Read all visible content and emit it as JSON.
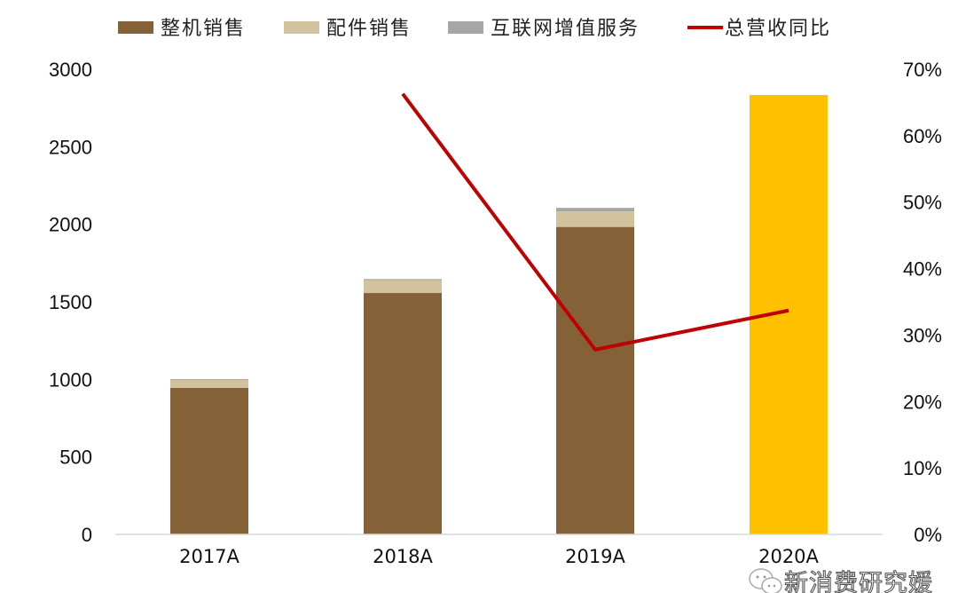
{
  "chart_data": {
    "type": "bar",
    "stacked": true,
    "categories": [
      "2017A",
      "2018A",
      "2019A",
      "2020A"
    ],
    "series": [
      {
        "name": "整机销售",
        "axis": "left",
        "type": "bar",
        "color": "#846136",
        "values": [
          945,
          1557,
          1983,
          null
        ]
      },
      {
        "name": "配件销售",
        "axis": "left",
        "type": "bar",
        "color": "#D3C29E",
        "values": [
          55,
          82,
          100,
          null
        ]
      },
      {
        "name": "互联网增值服务",
        "axis": "left",
        "type": "bar",
        "color": "#A6A6A6",
        "values": [
          2,
          8,
          23,
          null
        ]
      },
      {
        "name": "",
        "axis": "left",
        "type": "bar",
        "color": "#FFC000",
        "values": [
          null,
          null,
          null,
          2834
        ]
      },
      {
        "name": "总营收同比",
        "axis": "right",
        "type": "line",
        "color": "#C00000",
        "values": [
          null,
          66.3,
          27.8,
          33.7
        ]
      }
    ],
    "legend_position": "top",
    "left_axis": {
      "ylim": [
        0,
        3000
      ],
      "ticks": [
        "0",
        "500",
        "1000",
        "1500",
        "2000",
        "2500",
        "3000"
      ]
    },
    "right_axis": {
      "ylim": [
        0,
        70
      ],
      "unit": "%",
      "ticks": [
        "0%",
        "10%",
        "20%",
        "30%",
        "40%",
        "50%",
        "60%",
        "70%"
      ]
    },
    "grid": false
  },
  "watermark": {
    "text": "新消费研究媛",
    "icon": "wechat-icon"
  }
}
